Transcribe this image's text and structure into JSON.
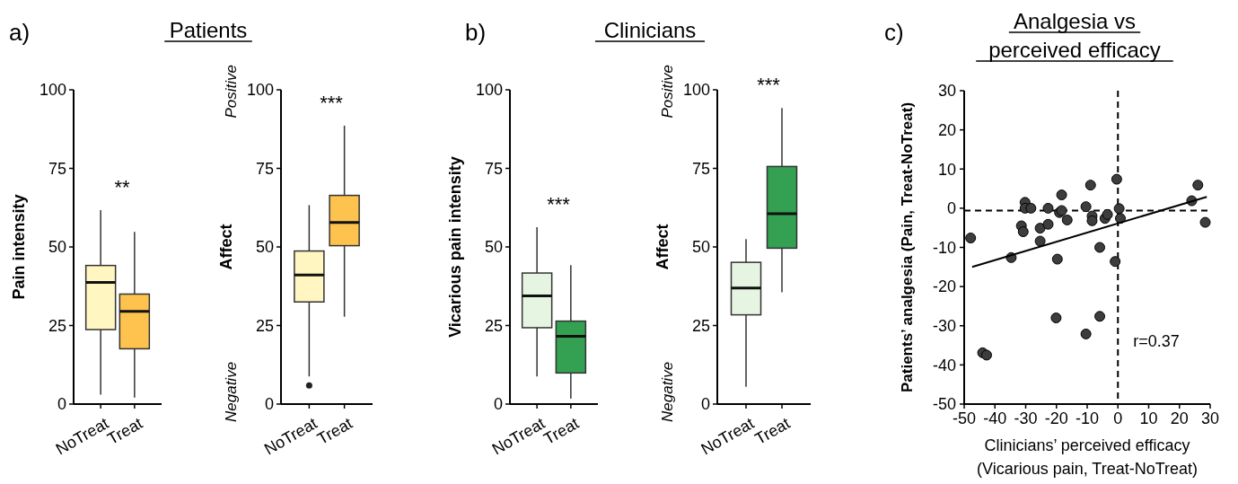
{
  "chart_data": [
    {
      "type": "box",
      "title": "Patients",
      "ylabel": "Pain intensity",
      "categories": [
        "NoTreat",
        "Treat"
      ],
      "colors": [
        "#fff6c2",
        "#fdc34e"
      ],
      "boxes": [
        {
          "low": 3,
          "q1": 23.7,
          "median": 38.7,
          "q3": 44.1,
          "high": 61.7
        },
        {
          "low": 2.1,
          "q1": 17.6,
          "median": 29.5,
          "q3": 35,
          "high": 54.8
        }
      ],
      "ylim": [
        0,
        100
      ],
      "yticks": [
        0,
        25,
        50,
        75,
        100
      ],
      "annotations": [
        "a)",
        "**"
      ]
    },
    {
      "type": "box",
      "ylabel": "Affect",
      "categories": [
        "NoTreat",
        "Treat"
      ],
      "colors": [
        "#fff6c2",
        "#fdc34e"
      ],
      "boxes": [
        {
          "low": 8.8,
          "q1": 32.5,
          "median": 41.1,
          "q3": 48.7,
          "high": 63.3,
          "outliers": [
            5.9
          ]
        },
        {
          "low": 27.8,
          "q1": 50.4,
          "median": 57.8,
          "q3": 66.4,
          "high": 88.6
        }
      ],
      "ylim": [
        0,
        100
      ],
      "yticks": [
        0,
        25,
        50,
        75,
        100
      ],
      "annotations": [
        "***",
        "Positive",
        "Negative"
      ]
    },
    {
      "type": "box",
      "title": "Clinicians",
      "ylabel": "Vicarious pain intensity",
      "categories": [
        "NoTreat",
        "Treat"
      ],
      "colors": [
        "#e6f5e1",
        "#33a052"
      ],
      "boxes": [
        {
          "low": 8.8,
          "q1": 24.3,
          "median": 34.4,
          "q3": 41.7,
          "high": 56.3
        },
        {
          "low": 1.7,
          "q1": 9.9,
          "median": 21.6,
          "q3": 26.4,
          "high": 44.2
        }
      ],
      "ylim": [
        0,
        100
      ],
      "yticks": [
        0,
        25,
        50,
        75,
        100
      ],
      "annotations": [
        "b)",
        "***"
      ]
    },
    {
      "type": "box",
      "ylabel": "Affect",
      "categories": [
        "NoTreat",
        "Treat"
      ],
      "colors": [
        "#e6f5e1",
        "#33a052"
      ],
      "boxes": [
        {
          "low": 5.5,
          "q1": 28.4,
          "median": 36.9,
          "q3": 45.1,
          "high": 52.5
        },
        {
          "low": 35.6,
          "q1": 49.6,
          "median": 60.6,
          "q3": 75.6,
          "high": 94.2
        }
      ],
      "ylim": [
        0,
        100
      ],
      "yticks": [
        0,
        25,
        50,
        75,
        100
      ],
      "annotations": [
        "***",
        "Positive",
        "Negative"
      ]
    },
    {
      "type": "scatter",
      "title": "Analgesia vs\nperceived efficacy",
      "xlabel": "Clinicians’ perceived efficacy\n(Vicarious pain, Treat-NoTreat)",
      "ylabel": "Patients’ analgesia (Pain, Treat-NoTreat)",
      "series": [
        {
          "type": "scatter",
          "marker": "circle",
          "color": "#3d3d3d",
          "x": [
            -47.9,
            -44,
            -42.7,
            -34.7,
            -31.4,
            -30.8,
            -30.2,
            -30.2,
            -28.3,
            -25.3,
            -25.3,
            -22.7,
            -22.7,
            -20.1,
            -19.7,
            -19,
            -18.3,
            -18.3,
            -16.5,
            -10.4,
            -10.4,
            -8.9,
            -8.4,
            -8.4,
            -5.9,
            -5.9,
            -4.2,
            -3.4,
            -0.9,
            -0.4,
            0.4,
            0.8,
            24,
            26,
            28.4
          ],
          "values": [
            -7.6,
            -36.9,
            -37.5,
            -12.6,
            -4.5,
            -6,
            1.5,
            0,
            0,
            -5.1,
            -8.4,
            0,
            -4.1,
            -28,
            -13,
            -1.1,
            -0.6,
            3.4,
            -3,
            0.4,
            -32.1,
            5.9,
            -2,
            -3.2,
            -10,
            -27.6,
            -2.6,
            -1.6,
            -13.6,
            7.4,
            -0.1,
            -2.6,
            1.9,
            5.9,
            -3.6
          ]
        },
        {
          "type": "line",
          "color": "#000000",
          "x": [
            -47.4,
            28.9
          ],
          "values": [
            -15,
            2.9
          ]
        }
      ],
      "xlim": [
        -50,
        30
      ],
      "xticks": [
        -50,
        -40,
        -30,
        -20,
        -10,
        0,
        10,
        20,
        30
      ],
      "ylim": [
        -50,
        30
      ],
      "yticks": [
        -50,
        -40,
        -30,
        -20,
        -10,
        0,
        10,
        20,
        30
      ],
      "ref_lines": [
        {
          "axis": "y",
          "value": -0.6,
          "color": "#000000",
          "line_style": "dashed"
        },
        {
          "axis": "x",
          "value": 0,
          "color": "#000000",
          "line_style": "dashed"
        }
      ],
      "annotations": [
        "c)",
        "r=0.37"
      ]
    }
  ]
}
